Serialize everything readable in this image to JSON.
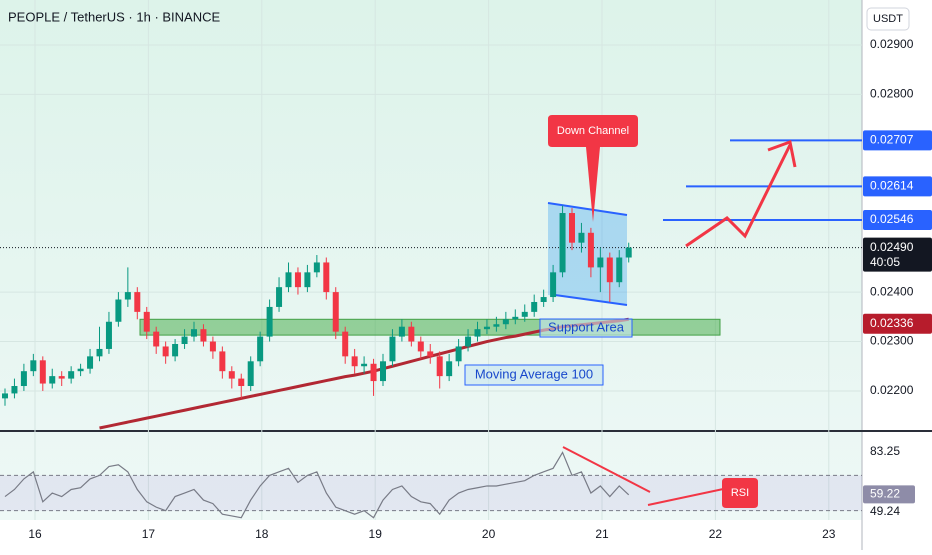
{
  "chart_data": {
    "type": "candlestick",
    "title": "PEOPLE / TetherUS · 1h · BINANCE",
    "currency": "USDT",
    "xlabels": [
      "16",
      "17",
      "18",
      "19",
      "20",
      "21",
      "22",
      "23"
    ],
    "ylim": [
      0.02121,
      0.02991
    ],
    "yticks": [
      {
        "value": 0.029,
        "label": "0.02900"
      },
      {
        "value": 0.028,
        "label": "0.02800"
      },
      {
        "value": 0.024,
        "label": "0.02400"
      },
      {
        "value": 0.023,
        "label": "0.02300"
      },
      {
        "value": 0.022,
        "label": "0.02200"
      }
    ],
    "grid": true,
    "up_color": "#089981",
    "down_color": "#f23645",
    "open": [
      0.02185,
      0.02195,
      0.0221,
      0.0224,
      0.02262,
      0.02215,
      0.0223,
      0.02225,
      0.0224,
      0.02245,
      0.0227,
      0.02285,
      0.0234,
      0.02385,
      0.024,
      0.0236,
      0.0232,
      0.0229,
      0.0227,
      0.02295,
      0.0231,
      0.02325,
      0.023,
      0.0228,
      0.0224,
      0.02225,
      0.0221,
      0.0226,
      0.0231,
      0.0237,
      0.0241,
      0.0244,
      0.0241,
      0.0244,
      0.0246,
      0.024,
      0.0232,
      0.0227,
      0.0225,
      0.02255,
      0.0222,
      0.0226,
      0.0231,
      0.0233,
      0.023,
      0.0228,
      0.0227,
      0.0223,
      0.0226,
      0.0229,
      0.0231,
      0.02325,
      0.0233,
      0.02335,
      0.02345,
      0.0235,
      0.0236,
      0.0238,
      0.0239,
      0.0244,
      0.0256,
      0.025,
      0.0252,
      0.0245,
      0.0247,
      0.0242,
      0.0247
    ],
    "high": [
      0.02205,
      0.02225,
      0.02255,
      0.02275,
      0.0227,
      0.02245,
      0.0224,
      0.0225,
      0.02255,
      0.02285,
      0.0233,
      0.0236,
      0.024,
      0.0245,
      0.0241,
      0.0237,
      0.0233,
      0.023,
      0.02305,
      0.02325,
      0.0234,
      0.02335,
      0.0231,
      0.0229,
      0.0225,
      0.02235,
      0.0227,
      0.0232,
      0.02385,
      0.0243,
      0.0246,
      0.0245,
      0.02455,
      0.02475,
      0.0247,
      0.0241,
      0.0233,
      0.02285,
      0.0227,
      0.02265,
      0.02275,
      0.02325,
      0.02345,
      0.0234,
      0.0231,
      0.02295,
      0.0228,
      0.02275,
      0.02305,
      0.02325,
      0.0234,
      0.02345,
      0.0235,
      0.0236,
      0.02365,
      0.02375,
      0.02395,
      0.02405,
      0.02455,
      0.02575,
      0.0257,
      0.0254,
      0.0253,
      0.0249,
      0.0248,
      0.02485,
      0.025
    ],
    "low": [
      0.0217,
      0.02185,
      0.022,
      0.0223,
      0.022,
      0.02205,
      0.0221,
      0.02215,
      0.0223,
      0.02235,
      0.0226,
      0.02275,
      0.0233,
      0.0237,
      0.02345,
      0.02305,
      0.02275,
      0.02255,
      0.0226,
      0.02285,
      0.023,
      0.0229,
      0.02265,
      0.02225,
      0.02205,
      0.02185,
      0.022,
      0.0225,
      0.023,
      0.0236,
      0.024,
      0.02395,
      0.024,
      0.0243,
      0.02385,
      0.02305,
      0.02255,
      0.02235,
      0.02235,
      0.0219,
      0.0221,
      0.0225,
      0.023,
      0.0229,
      0.02265,
      0.02255,
      0.02205,
      0.0222,
      0.0225,
      0.0228,
      0.023,
      0.02315,
      0.0232,
      0.02325,
      0.02335,
      0.0234,
      0.0235,
      0.0237,
      0.0238,
      0.0243,
      0.02485,
      0.0248,
      0.0243,
      0.024,
      0.0238,
      0.0241,
      0.0246
    ],
    "close": [
      0.02195,
      0.0221,
      0.0224,
      0.02262,
      0.02215,
      0.0223,
      0.02225,
      0.0224,
      0.02245,
      0.0227,
      0.02285,
      0.0234,
      0.02385,
      0.024,
      0.0236,
      0.0232,
      0.0229,
      0.0227,
      0.02295,
      0.0231,
      0.02325,
      0.023,
      0.0228,
      0.0224,
      0.02225,
      0.0221,
      0.0226,
      0.0231,
      0.0237,
      0.0241,
      0.0244,
      0.0241,
      0.0244,
      0.0246,
      0.024,
      0.0232,
      0.0227,
      0.0225,
      0.02255,
      0.0222,
      0.0226,
      0.0231,
      0.0233,
      0.023,
      0.0228,
      0.0227,
      0.0223,
      0.0226,
      0.0229,
      0.0231,
      0.02325,
      0.0233,
      0.02335,
      0.02345,
      0.0235,
      0.0236,
      0.0238,
      0.0239,
      0.0244,
      0.0256,
      0.025,
      0.0252,
      0.0245,
      0.0247,
      0.0242,
      0.0247,
      0.0249
    ],
    "ma": {
      "name": "Moving Average 100",
      "color": "#b22833",
      "values": [
        null,
        null,
        null,
        null,
        null,
        null,
        null,
        null,
        null,
        null,
        0.02125,
        0.02129,
        0.02133,
        0.02137,
        0.02141,
        0.02145,
        0.02149,
        0.02153,
        0.02157,
        0.02161,
        0.02165,
        0.02169,
        0.02173,
        0.02177,
        0.02181,
        0.02185,
        0.02189,
        0.02193,
        0.02197,
        0.02201,
        0.02205,
        0.02209,
        0.02213,
        0.02217,
        0.02221,
        0.02225,
        0.02229,
        0.02232,
        0.02236,
        0.0224,
        0.02245,
        0.0225,
        0.02255,
        0.0226,
        0.02265,
        0.0227,
        0.02275,
        0.0228,
        0.02285,
        0.0229,
        0.02295,
        0.023,
        0.02304,
        0.02308,
        0.02311,
        0.02315,
        0.02319,
        0.02323,
        0.02326,
        0.0233,
        0.02332,
        0.02334,
        0.02336,
        0.02338,
        0.0234,
        0.02342,
        0.02345
      ]
    },
    "levels": [
      {
        "value": 0.02707,
        "color": "#2962ff"
      },
      {
        "value": 0.02614,
        "color": "#2962ff"
      },
      {
        "value": 0.02546,
        "color": "#2962ff"
      }
    ],
    "support": {
      "label": "Support Area",
      "zone": [
        0.02313,
        0.02345
      ],
      "value": 0.02336,
      "color": "#b71c2c"
    },
    "last_price": {
      "value": 0.0249,
      "label": "0.02490",
      "countdown": "40:05"
    },
    "annotations": [
      "Down Channel",
      "RSI"
    ],
    "rsi": {
      "ylim": [
        44.7,
        94.6
      ],
      "bands": [
        70,
        50
      ],
      "color": "#787b86",
      "yticks": [
        83.25,
        49.24
      ],
      "last": 59.22,
      "values": [
        58,
        62,
        68,
        72,
        55,
        60,
        58,
        62,
        63,
        68,
        70,
        75,
        76,
        72,
        62,
        55,
        52,
        50,
        58,
        60,
        62,
        56,
        54,
        48,
        47,
        46,
        56,
        64,
        70,
        72,
        74,
        66,
        70,
        72,
        60,
        52,
        50,
        48,
        50,
        46,
        56,
        62,
        64,
        58,
        55,
        54,
        48,
        56,
        60,
        62,
        63,
        64,
        64,
        65,
        66,
        67,
        70,
        72,
        74,
        83,
        70,
        72,
        60,
        64,
        58,
        64,
        59
      ]
    }
  }
}
